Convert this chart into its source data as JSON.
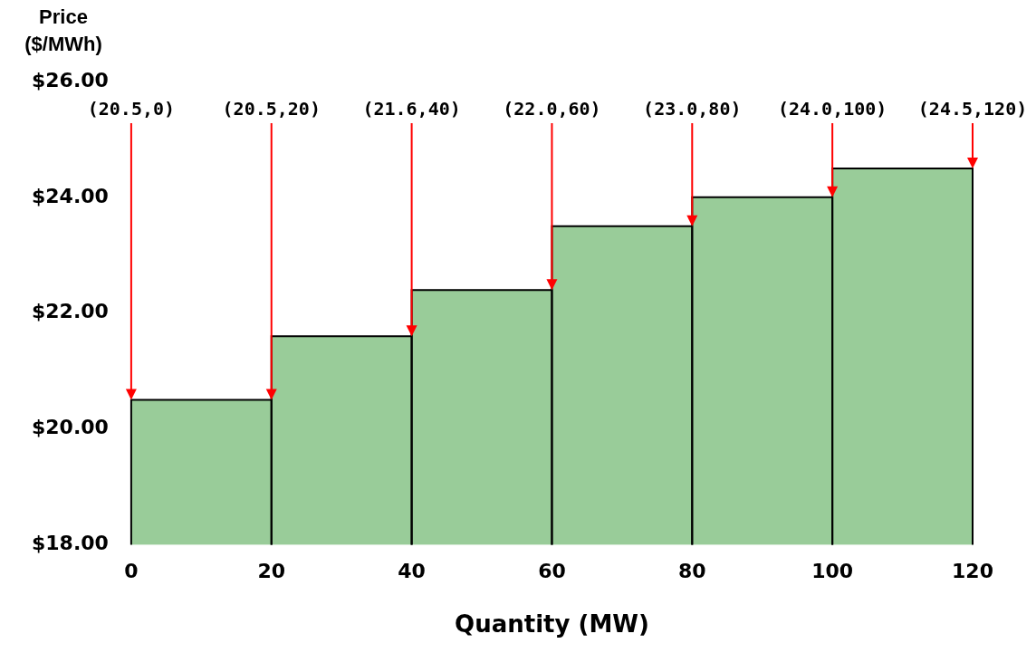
{
  "chart_data": {
    "type": "histogram",
    "ylabel": "Price ($/MWh)",
    "xlabel": "Quantity (MW)",
    "bins": [
      0,
      20,
      40,
      60,
      80,
      100,
      120
    ],
    "values": [
      20.5,
      21.6,
      22.4,
      23.5,
      24.0,
      24.5
    ],
    "color": "#99cc99",
    "xlim": [
      0,
      120
    ],
    "xticks": [
      0,
      20,
      40,
      60,
      80,
      100,
      120
    ],
    "ylim": [
      18,
      26
    ],
    "yticks": [
      {
        "value": 18,
        "label": "$18.00"
      },
      {
        "value": 20,
        "label": "$20.00"
      },
      {
        "value": 22,
        "label": "$22.00"
      },
      {
        "value": 24,
        "label": "$24.00"
      },
      {
        "value": 26,
        "label": "$26.00"
      }
    ],
    "grid": false,
    "legend": false,
    "annotations": [
      "(20.5,0)",
      {
        "text": "(20.5,20)",
        "x": 20,
        "y": 20.5
      },
      {
        "text": "(21.6,40)",
        "x": 40,
        "y": 21.6
      },
      {
        "text": "(22.0,60)",
        "x": 60,
        "y": 22.4
      },
      {
        "text": "(23.0,80)",
        "x": 80,
        "y": 23.5
      },
      {
        "text": "(24.0,100)",
        "x": 100,
        "y": 24.0
      },
      {
        "text": "(24.5,120)",
        "x": 120,
        "y": 24.5
      }
    ]
  }
}
